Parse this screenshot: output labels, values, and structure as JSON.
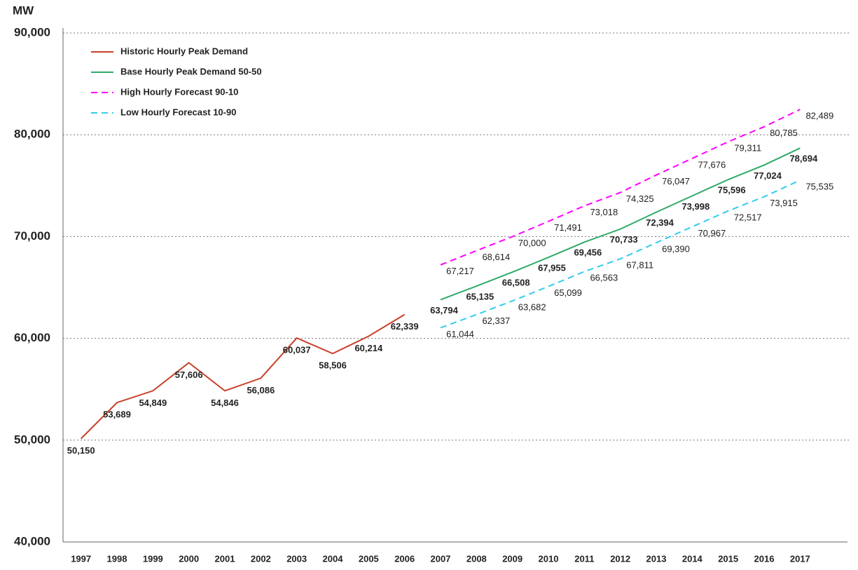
{
  "chart_data": {
    "type": "line",
    "y_label": "MW",
    "categories": [
      "1997",
      "1998",
      "1999",
      "2000",
      "2001",
      "2002",
      "2003",
      "2004",
      "2005",
      "2006",
      "2007",
      "2008",
      "2009",
      "2010",
      "2011",
      "2012",
      "2013",
      "2014",
      "2015",
      "2016",
      "2017"
    ],
    "series": [
      {
        "name": "Historic Hourly Peak Demand",
        "color": "#c8402a",
        "dashed": false,
        "bold_labels": true,
        "values": [
          50150,
          53689,
          54849,
          57606,
          54846,
          56086,
          60037,
          58506,
          60214,
          62339,
          null,
          null,
          null,
          null,
          null,
          null,
          null,
          null,
          null,
          null,
          null
        ],
        "value_labels": [
          "50,150",
          "53,689",
          "54,849",
          "57,606",
          "54,846",
          "56,086",
          "60,037",
          "58,506",
          "60,214",
          "62,339",
          null,
          null,
          null,
          null,
          null,
          null,
          null,
          null,
          null,
          null,
          null
        ]
      },
      {
        "name": "Base Hourly Peak Demand 50-50",
        "color": "#2eaa6a",
        "dashed": false,
        "bold_labels": true,
        "values": [
          null,
          null,
          null,
          null,
          null,
          null,
          null,
          null,
          null,
          null,
          63794,
          65135,
          66508,
          67955,
          69456,
          70733,
          72394,
          73998,
          75596,
          77024,
          78694
        ],
        "value_labels": [
          null,
          null,
          null,
          null,
          null,
          null,
          null,
          null,
          null,
          null,
          "63,794",
          "65,135",
          "66,508",
          "67,955",
          "69,456",
          "70,733",
          "72,394",
          "73,998",
          "75,596",
          "77,024",
          "78,694"
        ]
      },
      {
        "name": "High Hourly Forecast 90-10",
        "color": "#ff00ff",
        "dashed": true,
        "bold_labels": false,
        "values": [
          null,
          null,
          null,
          null,
          null,
          null,
          null,
          null,
          null,
          null,
          67217,
          68614,
          70000,
          71491,
          73018,
          74325,
          76047,
          77676,
          79311,
          80785,
          82489
        ],
        "value_labels": [
          null,
          null,
          null,
          null,
          null,
          null,
          null,
          null,
          null,
          null,
          "67,217",
          "68,614",
          "70,000",
          "71,491",
          "73,018",
          "74,325",
          "76,047",
          "77,676",
          "79,311",
          "80,785",
          "82,489"
        ]
      },
      {
        "name": "Low Hourly Forecast 10-90",
        "color": "#33ccee",
        "dashed": true,
        "bold_labels": false,
        "values": [
          null,
          null,
          null,
          null,
          null,
          null,
          null,
          null,
          null,
          null,
          61044,
          62337,
          63682,
          65099,
          66563,
          67811,
          69390,
          70967,
          72517,
          73915,
          75535
        ],
        "value_labels": [
          null,
          null,
          null,
          null,
          null,
          null,
          null,
          null,
          null,
          null,
          "61,044",
          "62,337",
          "63,682",
          "65,099",
          "66,563",
          "67,811",
          "69,390",
          "70,967",
          "72,517",
          "73,915",
          "75,535"
        ]
      }
    ],
    "ylim": [
      40000,
      90000
    ],
    "yticks": [
      {
        "value": 40000,
        "label": "40,000"
      },
      {
        "value": 50000,
        "label": "50,000"
      },
      {
        "value": 60000,
        "label": "60,000"
      },
      {
        "value": 70000,
        "label": "70,000"
      },
      {
        "value": 80000,
        "label": "80,000"
      },
      {
        "value": 90000,
        "label": "90,000"
      }
    ],
    "grid": true,
    "legend": "top-left"
  }
}
